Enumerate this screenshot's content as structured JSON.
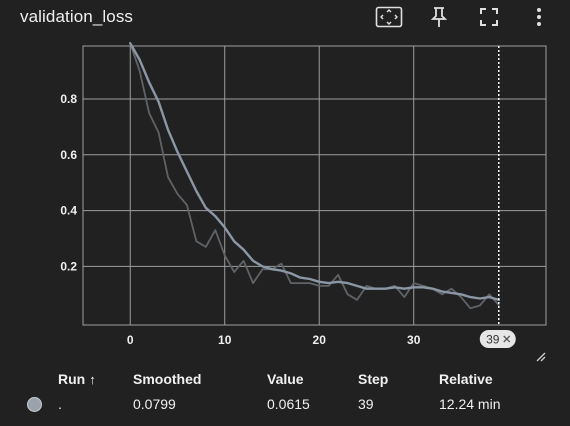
{
  "card": {
    "title": "validation_loss"
  },
  "toolbar": {
    "icons": [
      "fit-domain-icon",
      "pin-icon",
      "fullscreen-icon",
      "more-vert-icon"
    ]
  },
  "chart_data": {
    "type": "line",
    "xlim": [
      -5,
      44
    ],
    "ylim": [
      -0.01,
      0.99
    ],
    "x_ticks": [
      0,
      10,
      20,
      30
    ],
    "y_ticks": [
      0.2,
      0.4,
      0.6,
      0.8
    ],
    "x_tick_labels": [
      "0",
      "10",
      "20",
      "30"
    ],
    "y_tick_labels": [
      "0.2",
      "0.4",
      "0.6",
      "0.8"
    ],
    "grid": true,
    "hover_step_label": "39",
    "hover_step": 39,
    "series": [
      {
        "role": "raw",
        "color": "#5f6368",
        "x": [
          0,
          1,
          2,
          3,
          4,
          5,
          6,
          7,
          8,
          9,
          10,
          11,
          12,
          13,
          14,
          15,
          16,
          17,
          18,
          19,
          20,
          21,
          22,
          23,
          24,
          25,
          26,
          27,
          28,
          29,
          30,
          31,
          32,
          33,
          34,
          35,
          36,
          37,
          38,
          39
        ],
        "y": [
          1.0,
          0.9,
          0.75,
          0.68,
          0.52,
          0.46,
          0.42,
          0.29,
          0.27,
          0.33,
          0.24,
          0.18,
          0.22,
          0.14,
          0.19,
          0.19,
          0.21,
          0.14,
          0.14,
          0.14,
          0.13,
          0.13,
          0.17,
          0.1,
          0.08,
          0.13,
          0.12,
          0.12,
          0.13,
          0.09,
          0.14,
          0.13,
          0.12,
          0.1,
          0.12,
          0.09,
          0.05,
          0.06,
          0.1,
          0.0615
        ]
      },
      {
        "role": "smoothed",
        "color": "#8b97a4",
        "x": [
          0,
          1,
          2,
          3,
          4,
          5,
          6,
          7,
          8,
          9,
          10,
          11,
          12,
          13,
          14,
          15,
          16,
          17,
          18,
          19,
          20,
          21,
          22,
          23,
          24,
          25,
          26,
          27,
          28,
          29,
          30,
          31,
          32,
          33,
          34,
          35,
          36,
          37,
          38,
          39
        ],
        "y": [
          1.0,
          0.94,
          0.86,
          0.79,
          0.69,
          0.61,
          0.54,
          0.47,
          0.41,
          0.38,
          0.34,
          0.29,
          0.26,
          0.22,
          0.2,
          0.19,
          0.185,
          0.175,
          0.16,
          0.155,
          0.145,
          0.14,
          0.145,
          0.14,
          0.13,
          0.12,
          0.12,
          0.12,
          0.125,
          0.12,
          0.125,
          0.125,
          0.12,
          0.11,
          0.105,
          0.1,
          0.09,
          0.085,
          0.09,
          0.0799
        ]
      }
    ]
  },
  "table": {
    "headers": {
      "run": "Run",
      "run_sort": "↑",
      "smoothed": "Smoothed",
      "value": "Value",
      "step": "Step",
      "relative": "Relative"
    },
    "rows": [
      {
        "run": ".",
        "smoothed": "0.0799",
        "value": "0.0615",
        "step": "39",
        "relative": "12.24 min",
        "dot_color": "#9aa3ad"
      }
    ]
  }
}
